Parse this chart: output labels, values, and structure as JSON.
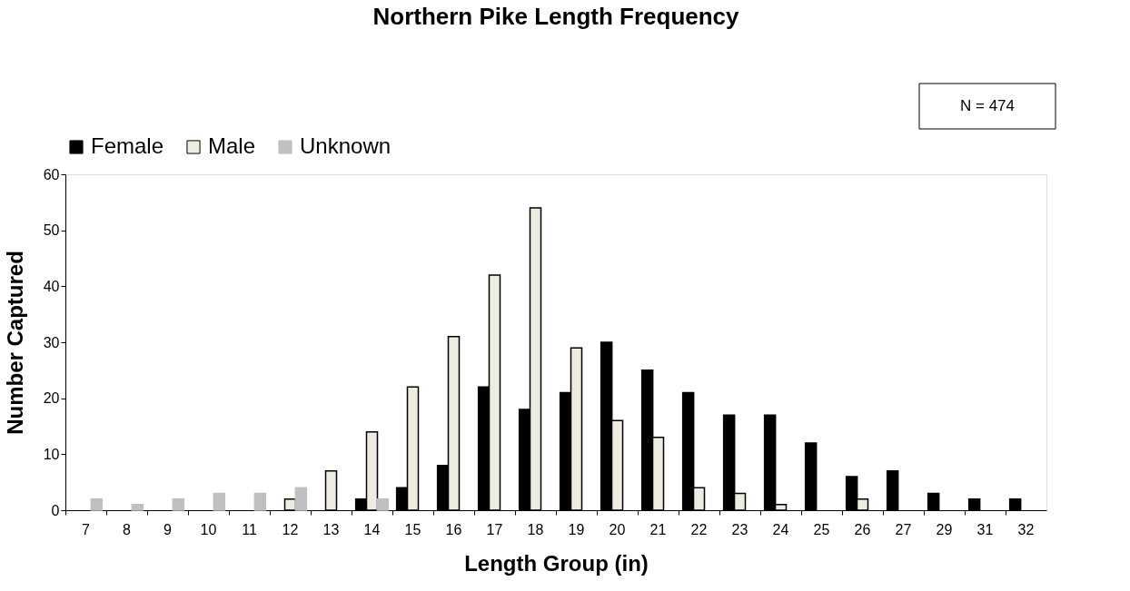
{
  "chart_data": {
    "type": "bar",
    "title": "Northern Pike Length Frequency",
    "xlabel": "Length Group (in)",
    "ylabel": "Number Captured",
    "categories": [
      "7",
      "8",
      "9",
      "10",
      "11",
      "12",
      "13",
      "14",
      "15",
      "16",
      "17",
      "18",
      "19",
      "20",
      "21",
      "22",
      "23",
      "24",
      "25",
      "26",
      "27",
      "29",
      "31",
      "32"
    ],
    "series": [
      {
        "name": "Female",
        "color": "#000000",
        "values": [
          null,
          null,
          null,
          null,
          null,
          null,
          null,
          2,
          4,
          8,
          22,
          18,
          21,
          30,
          25,
          21,
          17,
          17,
          12,
          6,
          7,
          3,
          2,
          2
        ]
      },
      {
        "name": "Male",
        "color": "#eeece1",
        "values": [
          null,
          null,
          null,
          null,
          null,
          2,
          7,
          14,
          22,
          31,
          42,
          54,
          29,
          16,
          13,
          4,
          3,
          1,
          null,
          2,
          null,
          null,
          null,
          null
        ]
      },
      {
        "name": "Unknown",
        "color": "#c0c0c0",
        "values": [
          2,
          1,
          2,
          3,
          3,
          4,
          null,
          2,
          null,
          null,
          null,
          null,
          null,
          null,
          null,
          null,
          null,
          null,
          null,
          null,
          null,
          null,
          null,
          null
        ]
      }
    ],
    "ylim": [
      0,
      60
    ],
    "yticks": [
      0,
      10,
      20,
      30,
      40,
      50,
      60
    ],
    "grid": false,
    "legend": "top",
    "annotations": [
      "N = 474"
    ]
  }
}
